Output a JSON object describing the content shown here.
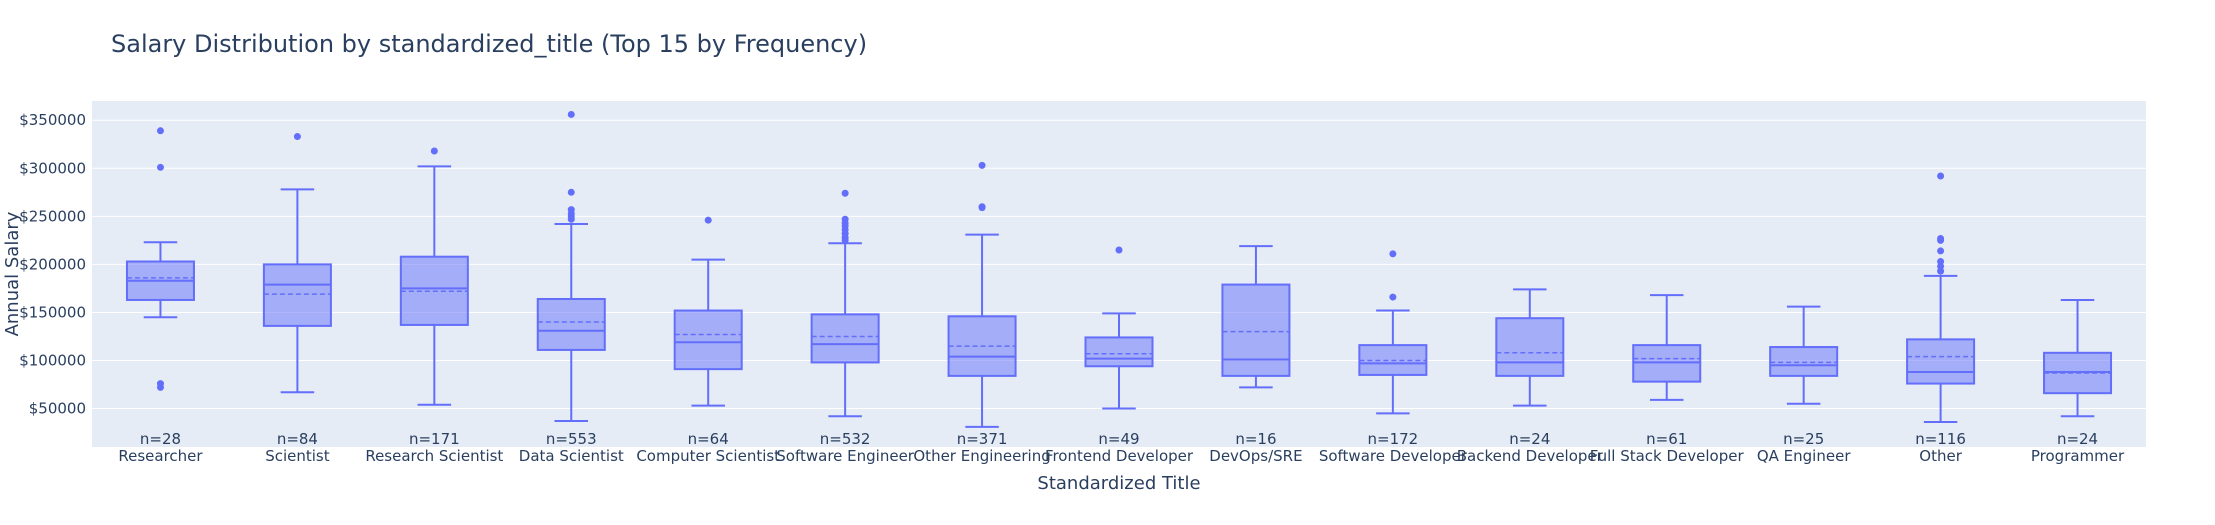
{
  "chart_data": {
    "type": "box",
    "title": "Salary Distribution by standardized_title (Top 15 by Frequency)",
    "xlabel": "Standardized Title",
    "ylabel": "Annual Salary",
    "ylim": [
      10000,
      370000
    ],
    "yticks": [
      50000,
      100000,
      150000,
      200000,
      250000,
      300000,
      350000
    ],
    "ytick_labels": [
      "$50000",
      "$100000",
      "$150000",
      "$200000",
      "$250000",
      "$300000",
      "$350000"
    ],
    "grid": true,
    "colors": {
      "box": "#636efa",
      "box_fill": "rgba(99,110,250,0.5)",
      "plot_bg": "#e5ecf6",
      "grid": "#ffffff",
      "text": "#2a3f5f"
    },
    "categories": [
      "Researcher",
      "Scientist",
      "Research Scientist",
      "Data Scientist",
      "Computer Scientist",
      "Software Engineer",
      "Other Engineering",
      "Frontend Developer",
      "DevOps/SRE",
      "Software Developer",
      "Backend Developer",
      "Full Stack Developer",
      "QA Engineer",
      "Other",
      "Programmer"
    ],
    "counts": [
      "n=28",
      "n=84",
      "n=171",
      "n=553",
      "n=64",
      "n=532",
      "n=371",
      "n=49",
      "n=16",
      "n=172",
      "n=24",
      "n=61",
      "n=25",
      "n=116",
      "n=24"
    ],
    "boxes": [
      {
        "min": 145000,
        "q1": 163000,
        "median": 183000,
        "mean": 186000,
        "q3": 203000,
        "max": 223000,
        "outliers": [
          339000,
          301000,
          76000,
          72000
        ]
      },
      {
        "min": 67000,
        "q1": 136000,
        "median": 179000,
        "mean": 169000,
        "q3": 200000,
        "max": 278000,
        "outliers": [
          333000
        ]
      },
      {
        "min": 54000,
        "q1": 137000,
        "median": 175000,
        "mean": 172000,
        "q3": 208000,
        "max": 302000,
        "outliers": [
          318000
        ]
      },
      {
        "min": 37000,
        "q1": 111000,
        "median": 131000,
        "mean": 140000,
        "q3": 164000,
        "max": 242000,
        "outliers": [
          356000,
          275000,
          257000,
          253000,
          250000,
          247000
        ]
      },
      {
        "min": 53000,
        "q1": 91000,
        "median": 119000,
        "mean": 127000,
        "q3": 152000,
        "max": 205000,
        "outliers": [
          246000
        ]
      },
      {
        "min": 42000,
        "q1": 98000,
        "median": 117000,
        "mean": 125000,
        "q3": 148000,
        "max": 222000,
        "outliers": [
          274000,
          247000,
          243000,
          240000,
          236000,
          232000,
          228000,
          225000
        ]
      },
      {
        "min": 31000,
        "q1": 84000,
        "median": 104000,
        "mean": 115000,
        "q3": 146000,
        "max": 231000,
        "outliers": [
          303000,
          260000,
          259000
        ]
      },
      {
        "min": 50000,
        "q1": 94000,
        "median": 102000,
        "mean": 107000,
        "q3": 124000,
        "max": 149000,
        "outliers": [
          215000
        ]
      },
      {
        "min": 72000,
        "q1": 84000,
        "median": 101000,
        "mean": 130000,
        "q3": 179000,
        "max": 219000,
        "outliers": []
      },
      {
        "min": 45000,
        "q1": 85000,
        "median": 97000,
        "mean": 100000,
        "q3": 116000,
        "max": 152000,
        "outliers": [
          211000,
          166000
        ]
      },
      {
        "min": 53000,
        "q1": 84000,
        "median": 98000,
        "mean": 108000,
        "q3": 144000,
        "max": 174000,
        "outliers": []
      },
      {
        "min": 59000,
        "q1": 78000,
        "median": 98000,
        "mean": 102000,
        "q3": 116000,
        "max": 168000,
        "outliers": []
      },
      {
        "min": 55000,
        "q1": 84000,
        "median": 95000,
        "mean": 98000,
        "q3": 114000,
        "max": 156000,
        "outliers": []
      },
      {
        "min": 36000,
        "q1": 76000,
        "median": 88000,
        "mean": 104000,
        "q3": 122000,
        "max": 188000,
        "outliers": [
          292000,
          227000,
          225000,
          214000,
          203000,
          198000,
          193000
        ]
      },
      {
        "min": 42000,
        "q1": 66000,
        "median": 88000,
        "mean": 87000,
        "q3": 108000,
        "max": 163000,
        "outliers": []
      }
    ]
  }
}
